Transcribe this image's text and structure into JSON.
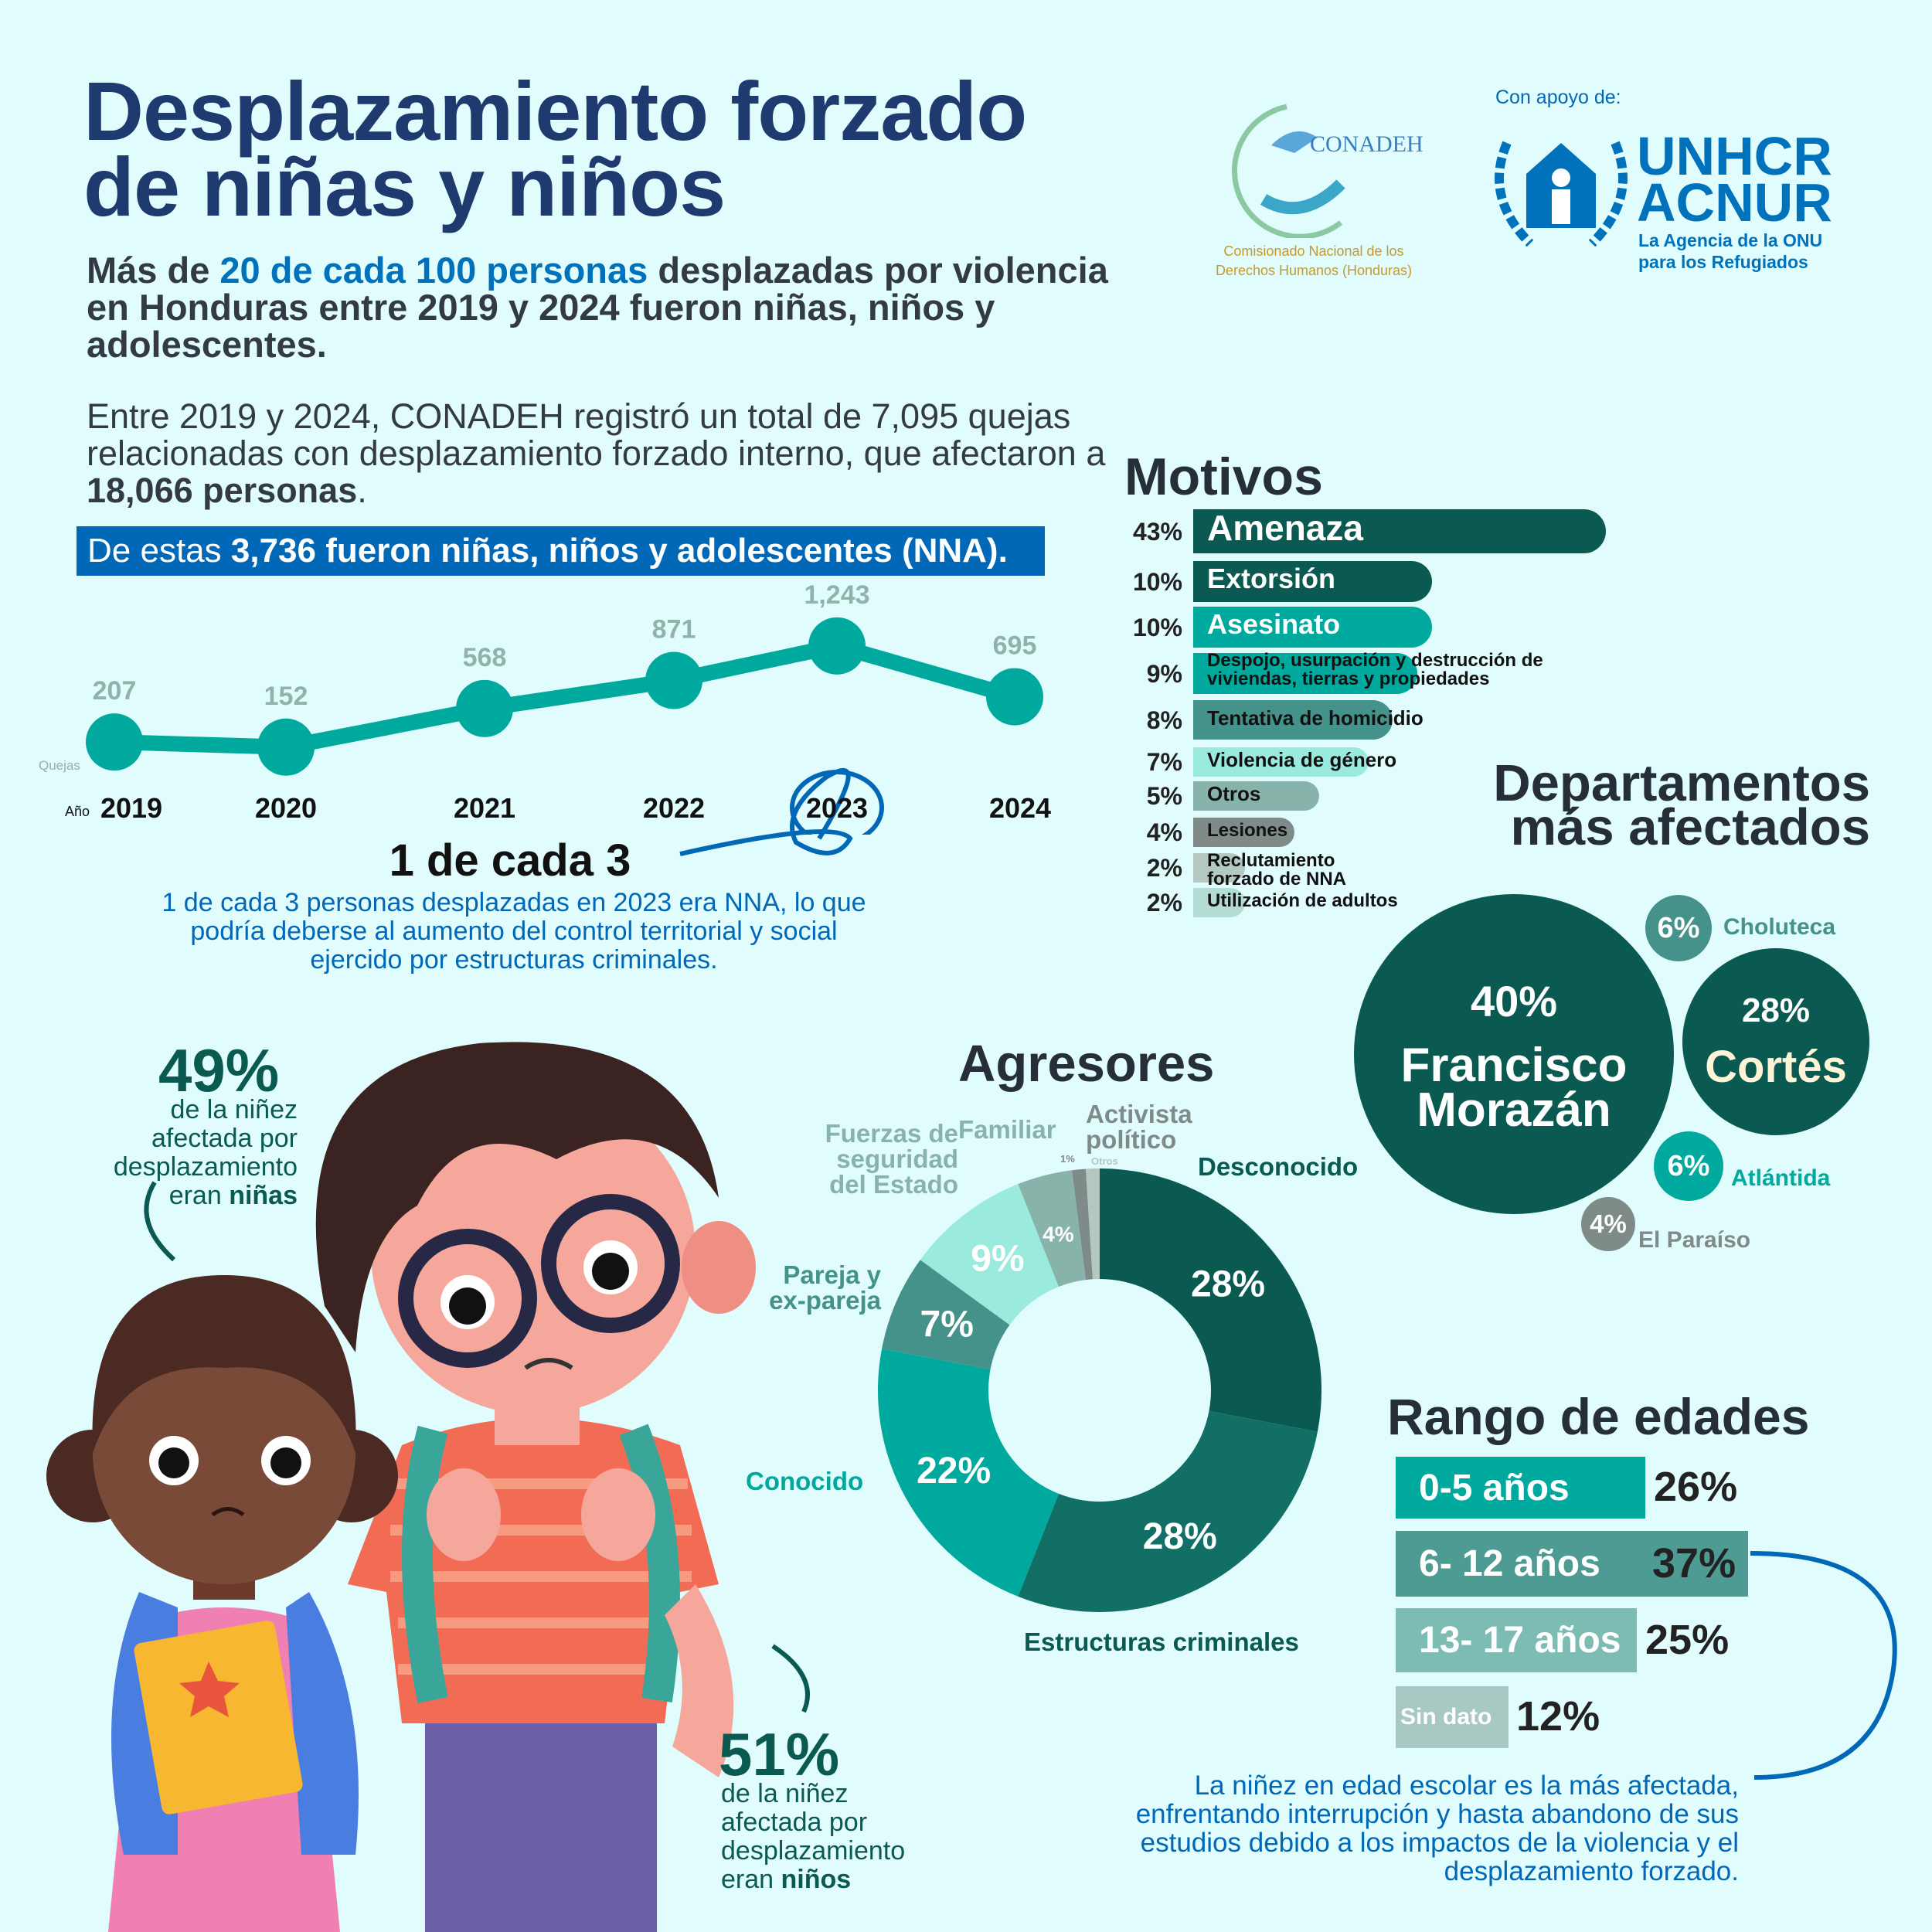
{
  "header": {
    "title_line1": "Desplazamiento forzado",
    "title_line2": "de niñas y niños",
    "lead_pre": "Más de ",
    "lead_highlight": "20 de cada 100 personas",
    "lead_post": " desplazadas por violencia en Honduras entre 2019 y 2024 fueron niñas, niños y adolescentes.",
    "para_pre": "Entre 2019 y 2024, CONADEH registró un total de 7,095 quejas relacionadas con desplazamiento forzado interno, que afectaron a ",
    "para_bold": "18,066 personas",
    "para_post": ".",
    "band_pre": "De estas ",
    "band_bold": "3,736 fueron niñas, niños y adolescentes (NNA).",
    "band_post": ""
  },
  "logos": {
    "conadeh_name": "CONADEH",
    "conadeh_caption": "Comisionado Nacional de los Derechos Humanos (Honduras)",
    "support_label": "Con apoyo de:",
    "unhcr_line1": "UNHCR",
    "unhcr_line2": "ACNUR",
    "unhcr_caption": "La Agencia de la ONU para los Refugiados"
  },
  "chart_data": [
    {
      "type": "line",
      "ylabel": "Quejas",
      "xlabel": "Año",
      "categories": [
        "2019",
        "2020",
        "2021",
        "2022",
        "2023",
        "2024"
      ],
      "value_labels": [
        "207",
        "152",
        "568",
        "871",
        "1,243",
        "695"
      ],
      "values": [
        207,
        152,
        568,
        871,
        1243,
        695
      ],
      "highlight": "2023",
      "color": "#00a99d"
    },
    {
      "type": "bar",
      "title": "Motivos",
      "categories": [
        "Amenaza",
        "Extorsión",
        "Asesinato",
        "Despojo, usurpación y destrucción de viviendas, tierras y propiedades",
        "Tentativa de homicidio",
        "Violencia de género",
        "Otros",
        "Lesiones",
        "Reclutamiento forzado de NNA",
        "Utilización de adultos"
      ],
      "values": [
        43,
        10,
        10,
        9,
        8,
        7,
        5,
        4,
        2,
        2
      ],
      "labels": [
        "43%",
        "10%",
        "10%",
        "9%",
        "8%",
        "7%",
        "5%",
        "4%",
        "2%",
        "2%"
      ],
      "colors": [
        "#0a5a52",
        "#0a5a52",
        "#00a99d",
        "#00a99d",
        "#45928a",
        "#9aeade",
        "#88b3aa",
        "#7f8b89",
        "#b3c7c3",
        "#b3dcd5"
      ]
    },
    {
      "type": "pie",
      "title": "Agresores",
      "categories": [
        "Desconocido",
        "Estructuras criminales",
        "Conocido",
        "Pareja y ex-pareja",
        "Fuerzas de seguridad del Estado",
        "Familiar",
        "Activista político",
        "Otros"
      ],
      "values": [
        28,
        28,
        22,
        7,
        9,
        4,
        1,
        1
      ],
      "labels": [
        "28%",
        "28%",
        "22%",
        "7%",
        "9%",
        "4%",
        "1%",
        ""
      ],
      "colors": [
        "#0a5a52",
        "#126f66",
        "#00a99d",
        "#45928a",
        "#9aeade",
        "#88b3aa",
        "#7f8b89",
        "#b3c7c3"
      ]
    },
    {
      "type": "bar",
      "title": "Rango de edades",
      "categories": [
        "0-5 años",
        "6- 12 años",
        "13- 17 años",
        "Sin dato"
      ],
      "values": [
        26,
        37,
        25,
        12
      ],
      "labels": [
        "26%",
        "37%",
        "25%",
        "12%"
      ],
      "colors": [
        "#00a99d",
        "#4d9b92",
        "#7dbcb3",
        "#a8c9c3"
      ]
    }
  ],
  "highlight_2023": {
    "title": "1 de cada 3",
    "text": "1 de cada 3 personas desplazadas en 2023 era NNA, lo que podría deberse al aumento del control territorial y social ejercido por estructuras criminales."
  },
  "departamentos": {
    "title_line1": "Departamentos",
    "title_line2": "más afectados",
    "items": [
      {
        "name": "Francisco Morazán",
        "pct": "40%",
        "value": 40,
        "color": "#0a5a52"
      },
      {
        "name": "Cortés",
        "pct": "28%",
        "value": 28,
        "color": "#0a5a52"
      },
      {
        "name": "Choluteca",
        "pct": "6%",
        "value": 6,
        "color": "#45928a"
      },
      {
        "name": "Atlántida",
        "pct": "6%",
        "value": 6,
        "color": "#00a99d"
      },
      {
        "name": "El Paraíso",
        "pct": "4%",
        "value": 4,
        "color": "#7f8b89"
      }
    ]
  },
  "ninez": {
    "girls_pct": "49%",
    "girls_text": "de la niñez afectada por desplazamiento eran ",
    "girls_bold": "niñas",
    "boys_pct": "51%",
    "boys_text": "de la niñez afectada por desplazamiento eran ",
    "boys_bold": "niños"
  },
  "rango_note": "La niñez en edad escolar es la más afectada, enfrentando interrupción y hasta abandono de sus estudios debido a los impactos de la violencia y el desplazamiento forzado."
}
